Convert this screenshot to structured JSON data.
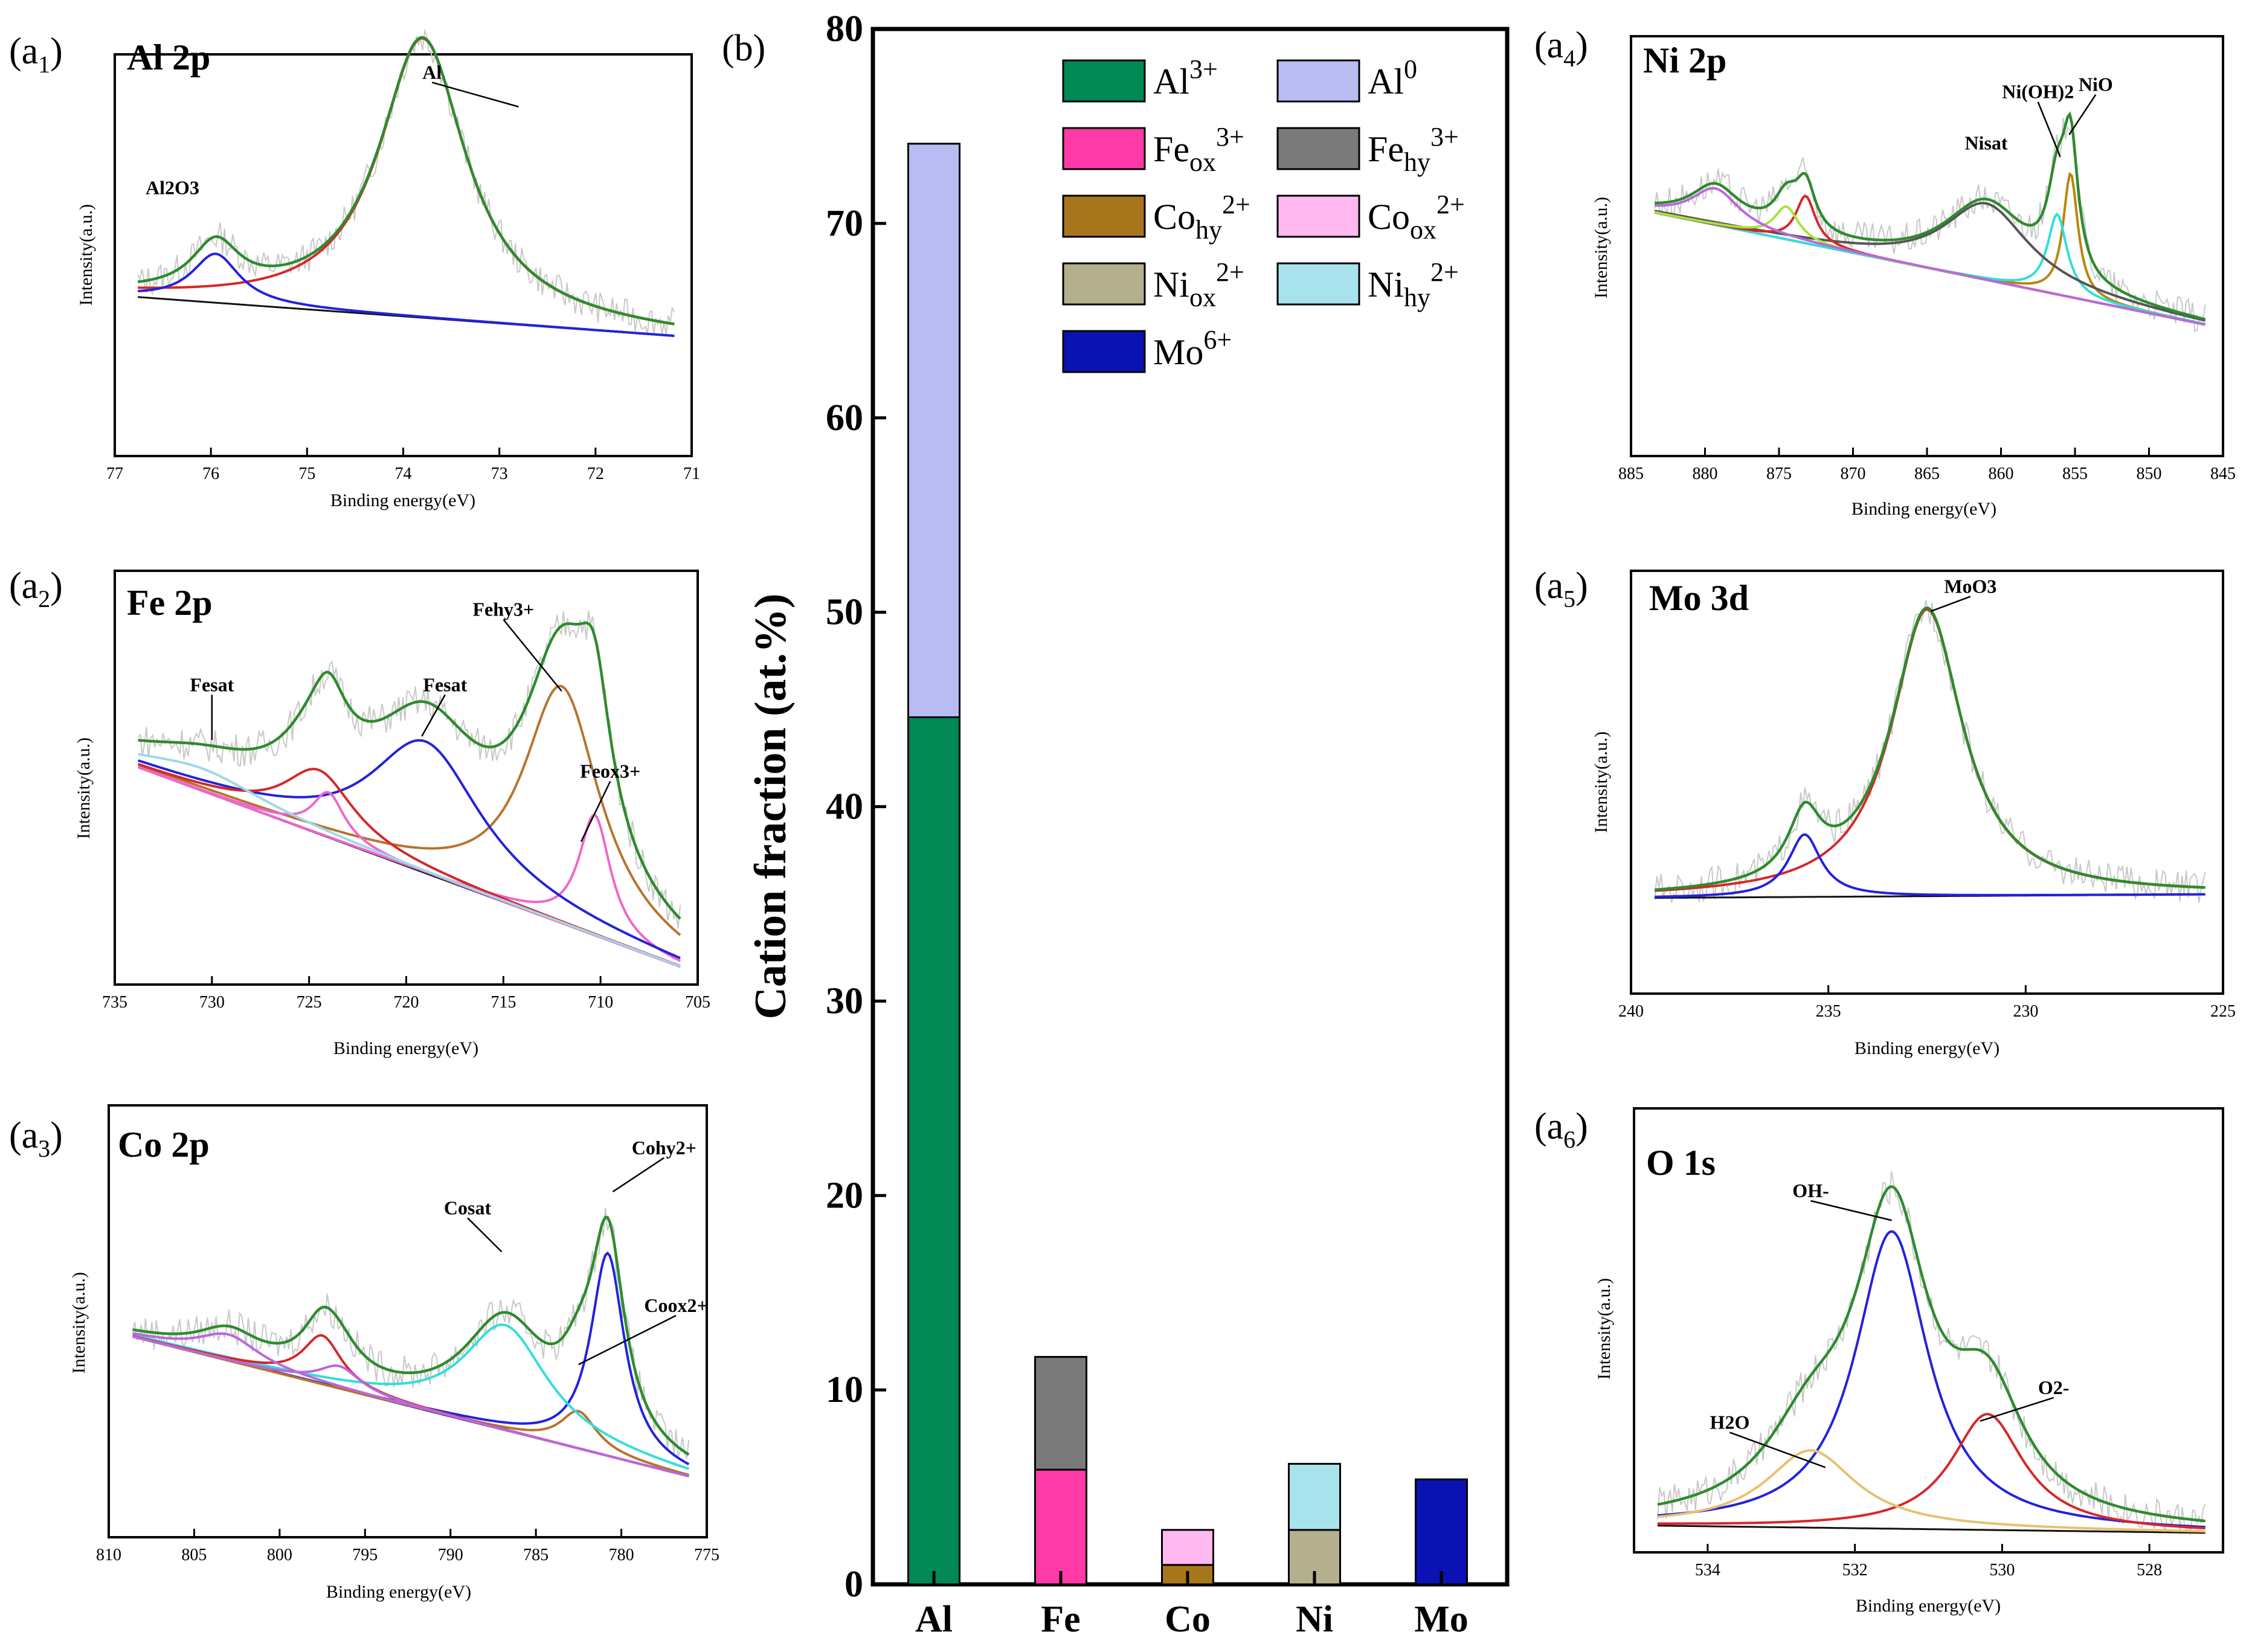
{
  "chart_data": [
    {
      "id": "a1",
      "panel_label": "(a",
      "panel_sub": "1",
      "panel_close": ")",
      "title": "Al 2p",
      "type": "line",
      "xlabel": "Binding energy(eV)",
      "ylabel": "Intensity(a.u.)",
      "xlim": [
        77,
        71
      ],
      "ylim": [
        0,
        1.15
      ],
      "xticks": [
        "77",
        "76",
        "75",
        "74",
        "73",
        "72",
        "71"
      ],
      "baseline": {
        "start": 0.46,
        "end": 0.34
      },
      "peaks": [
        {
          "name": "Al",
          "center": 73.8,
          "height": 0.8,
          "width": 0.55,
          "color": "#d62728"
        },
        {
          "name": "Al2O3",
          "center": 75.95,
          "height": 0.14,
          "width": 0.3,
          "color": "#2222dd"
        }
      ],
      "envelope_color": "#2e8b2e",
      "annotations": [
        {
          "text": "Al",
          "x": 73.7,
          "y": 1.08,
          "ax": 72.8,
          "ay": 1.0
        },
        {
          "text": "Al2O3",
          "x": 76.4,
          "y": 0.75,
          "ax": null,
          "ay": null
        }
      ]
    },
    {
      "id": "a2",
      "panel_label": "(a",
      "panel_sub": "2",
      "panel_close": ")",
      "title": "Fe 2p",
      "type": "line",
      "xlabel": "Binding energy(eV)",
      "ylabel": "Intensity(a.u.)",
      "xlim": [
        735,
        705
      ],
      "ylim": [
        0,
        1.1
      ],
      "xticks": [
        "735",
        "730",
        "725",
        "720",
        "715",
        "710",
        "705"
      ],
      "baseline": {
        "start": 0.6,
        "end": 0.03
      },
      "peaks": [
        {
          "name": "Fe_hy3+",
          "center": 712.0,
          "height": 0.63,
          "width": 2.4,
          "color": "#b8732d"
        },
        {
          "name": "Fe_ox3+",
          "center": 710.3,
          "height": 0.32,
          "width": 1.0,
          "color": "#ee66cc"
        },
        {
          "name": "Fe_sat",
          "center": 719.0,
          "height": 0.35,
          "width": 3.5,
          "color": "#2222dd"
        },
        {
          "name": "Fe_sat2",
          "center": 724.5,
          "height": 0.17,
          "width": 2.2,
          "color": "#d62728"
        },
        {
          "name": "Fe_sat3",
          "center": 724.0,
          "height": 0.12,
          "width": 1.0,
          "color": "#ee66cc"
        },
        {
          "name": "Fe_sat4",
          "center": 730.5,
          "height": 0.06,
          "width": 4.0,
          "color": "#9ed8e8"
        }
      ],
      "envelope_color": "#2e8b2e",
      "annotations": [
        {
          "text": "Fesat",
          "x": 730,
          "y": 0.78,
          "ax": 730,
          "ay": 0.65
        },
        {
          "text": "Fesat",
          "x": 718,
          "y": 0.78,
          "ax": 719.2,
          "ay": 0.66
        },
        {
          "text": "Fehy3+",
          "x": 715,
          "y": 0.98,
          "ax": 712,
          "ay": 0.78
        },
        {
          "text": "Feox3+",
          "x": 709.5,
          "y": 0.55,
          "ax": 711,
          "ay": 0.38
        }
      ]
    },
    {
      "id": "a3",
      "panel_label": "(a",
      "panel_sub": "3",
      "panel_close": ")",
      "title": "Co 2p",
      "type": "line",
      "xlabel": "Binding energy(eV)",
      "ylabel": "Intensity(a.u.)",
      "xlim": [
        810,
        775
      ],
      "ylim": [
        0,
        1.15
      ],
      "xticks": [
        "810",
        "805",
        "800",
        "795",
        "790",
        "785",
        "780",
        "775"
      ],
      "baseline": {
        "start": 0.55,
        "end": 0.15
      },
      "peaks": [
        {
          "name": "Co_hy2+",
          "center": 780.8,
          "height": 0.54,
          "width": 1.2,
          "color": "#2222dd"
        },
        {
          "name": "Co_ox2+",
          "center": 782.5,
          "height": 0.1,
          "width": 1.3,
          "color": "#b8732d"
        },
        {
          "name": "Co_sat",
          "center": 786.8,
          "height": 0.28,
          "width": 3.0,
          "color": "#33dddd"
        },
        {
          "name": "Co_sat2",
          "center": 797.5,
          "height": 0.13,
          "width": 1.4,
          "color": "#d62728"
        },
        {
          "name": "Co_sat3",
          "center": 796.5,
          "height": 0.06,
          "width": 1.5,
          "color": "#bb66dd"
        },
        {
          "name": "Co_sat4",
          "center": 803.0,
          "height": 0.07,
          "width": 2.2,
          "color": "#bb66dd"
        }
      ],
      "envelope_color": "#2e8b2e",
      "annotations": [
        {
          "text": "Cosat",
          "x": 789,
          "y": 0.86,
          "ax": 787,
          "ay": 0.76
        },
        {
          "text": "Cohy2+",
          "x": 777.5,
          "y": 1.02,
          "ax": 780.5,
          "ay": 0.92
        },
        {
          "text": "Coox2+",
          "x": 776.8,
          "y": 0.6,
          "ax": 782.5,
          "ay": 0.46
        }
      ]
    },
    {
      "id": "a4",
      "panel_label": "(a",
      "panel_sub": "4",
      "panel_close": ")",
      "title": "Ni 2p",
      "type": "line",
      "xlabel": "Binding energy(eV)",
      "ylabel": "Intensity(a.u.)",
      "xlim": [
        885,
        845
      ],
      "ylim": [
        0,
        1.15
      ],
      "xticks": [
        "885",
        "880",
        "875",
        "870",
        "865",
        "860",
        "855",
        "850",
        "845"
      ],
      "baseline": {
        "start": 0.68,
        "end": 0.35
      },
      "peaks": [
        {
          "name": "NiO",
          "center": 855.3,
          "height": 0.34,
          "width": 0.6,
          "color": "#b8860b"
        },
        {
          "name": "Ni(OH)2",
          "center": 856.2,
          "height": 0.22,
          "width": 0.8,
          "color": "#33dddd"
        },
        {
          "name": "Ni_sat",
          "center": 861.0,
          "height": 0.21,
          "width": 3.5,
          "color": "#555555"
        },
        {
          "name": "Ni_2p1_a",
          "center": 873.2,
          "height": 0.13,
          "width": 0.8,
          "color": "#d62728"
        },
        {
          "name": "Ni_2p1_b",
          "center": 874.5,
          "height": 0.09,
          "width": 1.0,
          "color": "#a8e23c"
        },
        {
          "name": "Ni_sat2",
          "center": 879.3,
          "height": 0.1,
          "width": 2.0,
          "color": "#bb66dd"
        }
      ],
      "envelope_color": "#2e8b2e",
      "annotations": [
        {
          "text": "Ni(OH)2",
          "x": 857.5,
          "y": 0.98,
          "ax": 856,
          "ay": 0.82
        },
        {
          "text": "NiO",
          "x": 853.6,
          "y": 1.0,
          "ax": 855.4,
          "ay": 0.88
        },
        {
          "text": "Nisat",
          "x": 861.0,
          "y": 0.84,
          "ax": null,
          "ay": null
        }
      ]
    },
    {
      "id": "a5",
      "panel_label": "(a",
      "panel_sub": "5",
      "panel_close": ")",
      "title": "Mo 3d",
      "type": "line",
      "xlabel": "Binding energy(eV)",
      "ylabel": "Intensity(a.u.)",
      "xlim": [
        240,
        225
      ],
      "ylim": [
        0,
        1.15
      ],
      "xticks": [
        "240",
        "235",
        "230",
        "225"
      ],
      "baseline": {
        "start": 0.26,
        "end": 0.27
      },
      "peaks": [
        {
          "name": "MoO3",
          "center": 232.5,
          "height": 0.78,
          "width": 1.1,
          "color": "#d62728"
        },
        {
          "name": "Mo_3d3",
          "center": 235.6,
          "height": 0.17,
          "width": 0.5,
          "color": "#2222dd"
        }
      ],
      "envelope_color": "#2e8b2e",
      "annotations": [
        {
          "text": "MoO3",
          "x": 231.4,
          "y": 1.09,
          "ax": 232.4,
          "ay": 1.04
        }
      ]
    },
    {
      "id": "a6",
      "panel_label": "(a",
      "panel_sub": "6",
      "panel_close": ")",
      "title": "O 1s",
      "type": "line",
      "xlabel": "Binding energy(eV)",
      "ylabel": "Intensity(a.u.)",
      "xlim": [
        535,
        527
      ],
      "ylim": [
        0,
        1.15
      ],
      "xticks": [
        "534",
        "532",
        "530",
        "528"
      ],
      "baseline": {
        "start": 0.07,
        "end": 0.05
      },
      "peaks": [
        {
          "name": "OH-",
          "center": 531.5,
          "height": 0.77,
          "width": 0.6,
          "color": "#2222dd"
        },
        {
          "name": "O2-",
          "center": 530.2,
          "height": 0.3,
          "width": 0.6,
          "color": "#d62728"
        },
        {
          "name": "H2O",
          "center": 532.6,
          "height": 0.2,
          "width": 0.75,
          "color": "#e8c070"
        }
      ],
      "envelope_color": "#2e8b2e",
      "annotations": [
        {
          "text": "OH-",
          "x": 532.6,
          "y": 0.92,
          "ax": 531.5,
          "ay": 0.86
        },
        {
          "text": "O2-",
          "x": 529.3,
          "y": 0.41,
          "ax": 530.3,
          "ay": 0.34
        },
        {
          "text": "H2O",
          "x": 533.7,
          "y": 0.32,
          "ax": 532.4,
          "ay": 0.22
        }
      ]
    },
    {
      "id": "b",
      "panel_label": "(b)",
      "type": "bar",
      "stacked": true,
      "categories": [
        "Al",
        "Fe",
        "Co",
        "Ni",
        "Mo"
      ],
      "ylabel": "Cation fraction (at.%)",
      "ylim": [
        0,
        80
      ],
      "yticks": [
        "0",
        "10",
        "20",
        "30",
        "40",
        "50",
        "60",
        "70",
        "80"
      ],
      "series": [
        {
          "name": "Al3+",
          "base": "Al",
          "sup": "3+",
          "sub": "",
          "color": "#008855",
          "values": [
            44.6,
            0,
            0,
            0,
            0
          ]
        },
        {
          "name": "Al0",
          "base": "Al",
          "sup": "0",
          "sub": "",
          "color": "#b8bcf2",
          "values": [
            29.5,
            0,
            0,
            0,
            0
          ]
        },
        {
          "name": "Fe_ox3+",
          "base": "Fe",
          "sup": "3+",
          "sub": "ox",
          "color": "#ff3aa8",
          "values": [
            0,
            5.9,
            0,
            0,
            0
          ]
        },
        {
          "name": "Fe_hy3+",
          "base": "Fe",
          "sup": "3+",
          "sub": "hy",
          "color": "#7a7a7a",
          "values": [
            0,
            5.8,
            0,
            0,
            0
          ]
        },
        {
          "name": "Co_hy2+",
          "base": "Co",
          "sup": "2+",
          "sub": "hy",
          "color": "#a8761a",
          "values": [
            0,
            0,
            1.0,
            0,
            0
          ]
        },
        {
          "name": "Co_ox2+",
          "base": "Co",
          "sup": "2+",
          "sub": "ox",
          "color": "#ffb8f0",
          "values": [
            0,
            0,
            1.8,
            0,
            0
          ]
        },
        {
          "name": "Ni_ox2+",
          "base": "Ni",
          "sup": "2+",
          "sub": "ox",
          "color": "#b4b08e",
          "values": [
            0,
            0,
            0,
            2.8,
            0
          ]
        },
        {
          "name": "Ni_hy2+",
          "base": "Ni",
          "sup": "2+",
          "sub": "hy",
          "color": "#a8e2ec",
          "values": [
            0,
            0,
            0,
            3.4,
            0
          ]
        },
        {
          "name": "Mo6+",
          "base": "Mo",
          "sup": "6+",
          "sub": "",
          "color": "#0a12b4",
          "values": [
            0,
            0,
            0,
            0,
            5.4
          ]
        }
      ]
    }
  ]
}
